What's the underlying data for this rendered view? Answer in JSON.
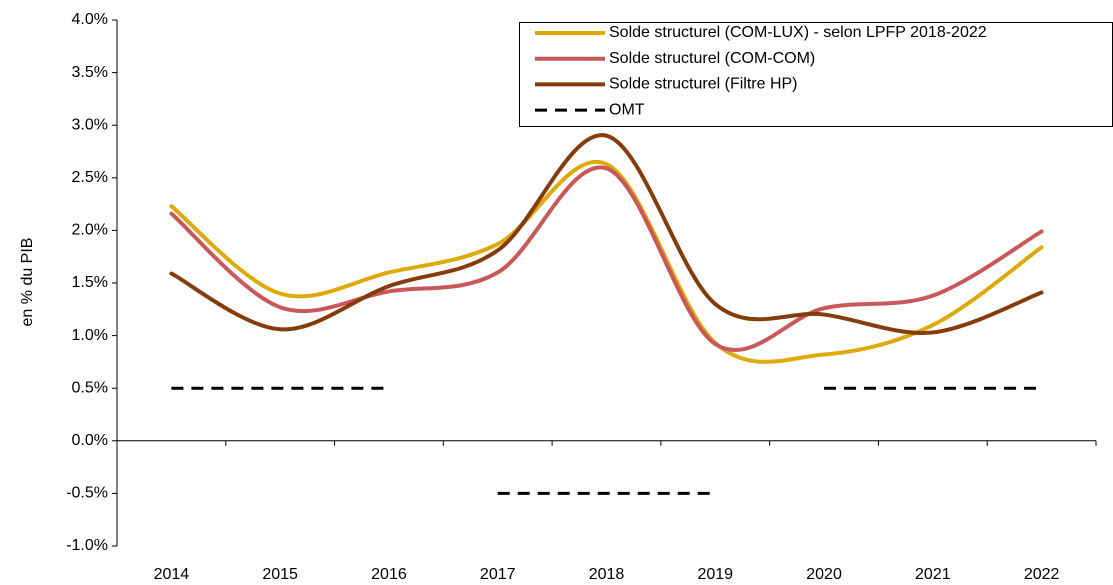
{
  "chart_data": {
    "type": "line",
    "ylabel": "en % du PIB",
    "categories": [
      "2014",
      "2015",
      "2016",
      "2017",
      "2018",
      "2019",
      "2020",
      "2021",
      "2022"
    ],
    "series": [
      {
        "name": "Solde structurel (COM-LUX) - selon LPFP 2018-2022",
        "color": "#DDAA0A",
        "values": [
          2.23,
          1.4,
          1.6,
          1.87,
          2.63,
          0.93,
          0.82,
          1.1,
          1.84
        ]
      },
      {
        "name": "Solde structurel (COM-COM)",
        "color": "#C8585A",
        "values": [
          2.16,
          1.27,
          1.42,
          1.6,
          2.59,
          0.92,
          1.26,
          1.38,
          1.99
        ]
      },
      {
        "name": "Solde structurel (Filtre HP)",
        "color": "#843C0C",
        "values": [
          1.59,
          1.06,
          1.47,
          1.81,
          2.9,
          1.3,
          1.2,
          1.03,
          1.41
        ]
      },
      {
        "name": "OMT",
        "color": "#000000",
        "dashed": true,
        "values": [
          0.5,
          0.5,
          0.5,
          -0.5,
          -0.5,
          -0.5,
          0.5,
          0.5,
          0.5
        ]
      }
    ],
    "ylim": [
      -1.0,
      4.0
    ],
    "yticks": [
      {
        "value": -1.0,
        "label": "-1.0%"
      },
      {
        "value": -0.5,
        "label": "-0.5%"
      },
      {
        "value": 0,
        "label": "0.0%"
      },
      {
        "value": 0.5,
        "label": "0.5%"
      },
      {
        "value": 1.0,
        "label": "1.0%"
      },
      {
        "value": 1.5,
        "label": "1.5%"
      },
      {
        "value": 2.0,
        "label": "2.0%"
      },
      {
        "value": 2.5,
        "label": "2.5%"
      },
      {
        "value": 3.0,
        "label": "3.0%"
      },
      {
        "value": 3.5,
        "label": "3.5%"
      },
      {
        "value": 4.0,
        "label": "4.0%"
      }
    ],
    "grid": false,
    "legend": "top-right"
  }
}
